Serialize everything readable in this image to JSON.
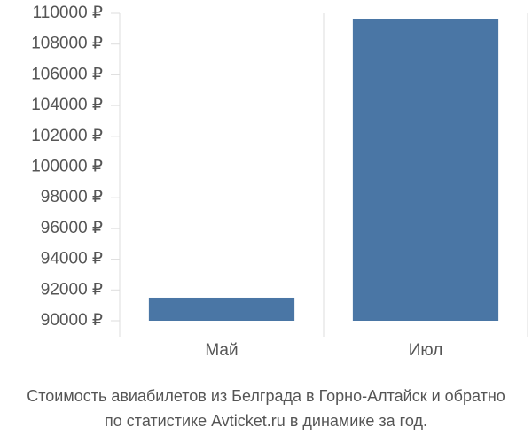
{
  "chart_data": {
    "type": "bar",
    "title": [
      "Стоимость авиабилетов из Белграда в Горно-Алтайск и обратно",
      "по статистике Avticket.ru в динамике за год."
    ],
    "categories": [
      "Май",
      "Июл"
    ],
    "values": [
      91500,
      109600
    ],
    "color": "#4a76a5",
    "ylim": [
      90000,
      110000
    ],
    "yticks": [
      {
        "value": 90000,
        "label": "90000 ₽"
      },
      {
        "value": 92000,
        "label": "92000 ₽"
      },
      {
        "value": 94000,
        "label": "94000 ₽"
      },
      {
        "value": 96000,
        "label": "96000 ₽"
      },
      {
        "value": 98000,
        "label": "98000 ₽"
      },
      {
        "value": 100000,
        "label": "100000 ₽"
      },
      {
        "value": 102000,
        "label": "102000 ₽"
      },
      {
        "value": 104000,
        "label": "104000 ₽"
      },
      {
        "value": 106000,
        "label": "106000 ₽"
      },
      {
        "value": 108000,
        "label": "108000 ₽"
      },
      {
        "value": 110000,
        "label": "110000 ₽"
      }
    ],
    "grid": true
  }
}
